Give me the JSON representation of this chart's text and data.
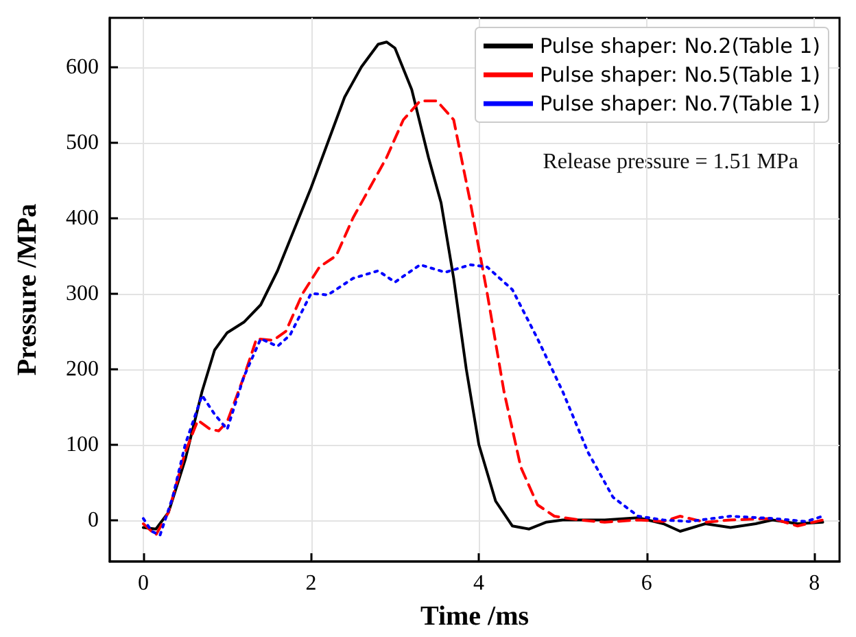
{
  "chart_data": {
    "type": "line",
    "xlabel": "Time /ms",
    "ylabel": "Pressure /MPa",
    "xlim": [
      -0.4,
      8.3
    ],
    "xticks": [
      0,
      2,
      4,
      6,
      8
    ],
    "ylim": [
      -55,
      665
    ],
    "yticks": [
      0,
      100,
      200,
      300,
      400,
      500,
      600
    ],
    "grid": true,
    "legend": "top right",
    "marker": "none",
    "annotations": [
      "Release pressure = 1.51 MPa"
    ],
    "series": [
      {
        "name": "Pulse shaper: No.2(Table 1)",
        "color": "#000000",
        "line_style": "solid",
        "x": [
          0,
          0.15,
          0.3,
          0.5,
          0.7,
          0.85,
          1.0,
          1.2,
          1.4,
          1.6,
          1.8,
          2.0,
          2.2,
          2.4,
          2.6,
          2.8,
          2.9,
          3.0,
          3.2,
          3.4,
          3.55,
          3.7,
          3.85,
          4.0,
          4.2,
          4.4,
          4.6,
          4.8,
          5.0,
          5.5,
          5.9,
          6.2,
          6.4,
          6.7,
          7.0,
          7.3,
          7.5,
          7.8,
          8.1
        ],
        "values": [
          -10,
          -12,
          10,
          80,
          170,
          225,
          248,
          262,
          285,
          330,
          385,
          440,
          500,
          560,
          600,
          630,
          633,
          625,
          570,
          480,
          420,
          320,
          200,
          100,
          25,
          -8,
          -12,
          -3,
          0,
          0,
          3,
          -5,
          -15,
          -5,
          -10,
          -5,
          0,
          -5,
          -3
        ]
      },
      {
        "name": "Pulse shaper: No.5(Table 1)",
        "color": "#ff0000",
        "line_style": "dashed",
        "x": [
          0,
          0.15,
          0.3,
          0.5,
          0.65,
          0.8,
          0.9,
          1.0,
          1.2,
          1.35,
          1.55,
          1.7,
          1.9,
          2.1,
          2.3,
          2.5,
          2.7,
          2.9,
          3.1,
          3.3,
          3.5,
          3.7,
          3.9,
          4.1,
          4.3,
          4.5,
          4.7,
          4.9,
          5.2,
          5.5,
          5.9,
          6.2,
          6.4,
          6.7,
          7.0,
          7.5,
          7.8,
          8.1
        ],
        "values": [
          -5,
          -20,
          10,
          90,
          132,
          120,
          118,
          130,
          190,
          240,
          238,
          250,
          300,
          335,
          350,
          400,
          440,
          480,
          530,
          555,
          555,
          530,
          420,
          300,
          170,
          70,
          20,
          5,
          0,
          -3,
          0,
          -2,
          5,
          -3,
          0,
          2,
          -8,
          0
        ]
      },
      {
        "name": "Pulse shaper: No.7(Table 1)",
        "color": "#0000ff",
        "line_style": "dotted",
        "x": [
          0,
          0.1,
          0.2,
          0.35,
          0.5,
          0.7,
          0.85,
          1.0,
          1.2,
          1.4,
          1.6,
          1.75,
          2.0,
          2.2,
          2.5,
          2.8,
          3.0,
          3.3,
          3.6,
          3.9,
          4.1,
          4.4,
          4.7,
          5.0,
          5.3,
          5.6,
          5.9,
          6.2,
          6.5,
          7.0,
          7.5,
          7.9,
          8.1
        ],
        "values": [
          2,
          -15,
          -20,
          30,
          100,
          165,
          140,
          120,
          190,
          240,
          230,
          245,
          300,
          298,
          320,
          330,
          315,
          338,
          328,
          338,
          335,
          305,
          240,
          170,
          90,
          30,
          5,
          0,
          -2,
          5,
          2,
          -2,
          5
        ]
      }
    ]
  }
}
